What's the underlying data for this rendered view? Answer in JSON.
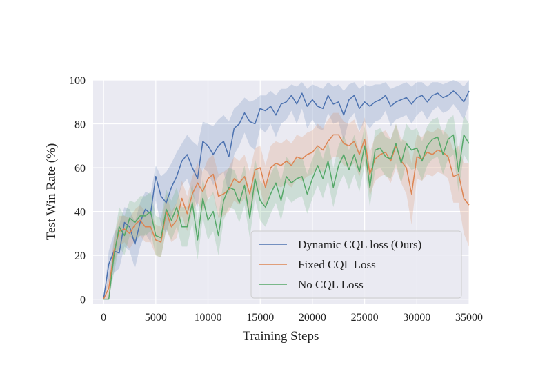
{
  "chart_data": {
    "type": "line",
    "xlabel": "Training Steps",
    "ylabel": "Test Win Rate (%)",
    "xlim": [
      -1000,
      35000
    ],
    "ylim": [
      -2,
      100
    ],
    "xticks": [
      0,
      5000,
      10000,
      15000,
      20000,
      25000,
      30000,
      35000
    ],
    "yticks": [
      0,
      20,
      40,
      60,
      80,
      100
    ],
    "grid": true,
    "legend_position": "lower-right",
    "series": [
      {
        "name": "Dynamic CQL loss (Ours)",
        "color": "#4c72b0",
        "x": [
          0,
          500,
          1000,
          1500,
          2000,
          2500,
          3000,
          3500,
          4000,
          4500,
          5000,
          5500,
          6000,
          6500,
          7000,
          7500,
          8000,
          8500,
          9000,
          9500,
          10000,
          10500,
          11000,
          11500,
          12000,
          12500,
          13000,
          13500,
          14000,
          14500,
          15000,
          15500,
          16000,
          16500,
          17000,
          17500,
          18000,
          18500,
          19000,
          19500,
          20000,
          20500,
          21000,
          21500,
          22000,
          22500,
          23000,
          23500,
          24000,
          24500,
          25000,
          25500,
          26000,
          26500,
          27000,
          27500,
          28000,
          28500,
          29000,
          29500,
          30000,
          30500,
          31000,
          31500,
          32000,
          32500,
          33000,
          33500,
          34000,
          34500,
          35000
        ],
        "y": [
          0,
          16,
          22,
          21,
          35,
          33,
          25,
          35,
          41,
          39,
          56,
          47,
          44,
          51,
          56,
          63,
          66,
          60,
          55,
          72,
          70,
          66,
          70,
          72,
          65,
          78,
          80,
          85,
          81,
          80,
          87,
          86,
          88,
          84,
          89,
          90,
          93,
          89,
          94,
          88,
          91,
          88,
          87,
          93,
          89,
          90,
          84,
          91,
          93,
          87,
          90,
          88,
          90,
          91,
          93,
          88,
          90,
          91,
          92,
          89,
          92,
          93,
          90,
          93,
          94,
          92,
          93,
          95,
          93,
          90,
          95
        ],
        "upper": [
          0,
          22,
          30,
          34,
          42,
          41,
          35,
          44,
          49,
          48,
          61,
          56,
          58,
          62,
          67,
          71,
          75,
          72,
          70,
          81,
          80,
          79,
          82,
          84,
          81,
          87,
          89,
          92,
          90,
          91,
          93,
          93,
          95,
          93,
          96,
          96,
          98,
          97,
          99,
          96,
          98,
          97,
          96,
          99,
          97,
          98,
          95,
          98,
          99,
          96,
          98,
          97,
          98,
          98,
          99,
          96,
          97,
          98,
          99,
          97,
          99,
          99,
          97,
          99,
          99,
          98,
          99,
          100,
          99,
          97,
          100
        ],
        "lower": [
          0,
          8,
          12,
          14,
          24,
          22,
          14,
          24,
          30,
          26,
          45,
          34,
          30,
          38,
          44,
          52,
          55,
          48,
          42,
          60,
          58,
          52,
          56,
          58,
          48,
          66,
          70,
          76,
          70,
          68,
          78,
          76,
          80,
          74,
          80,
          82,
          86,
          80,
          87,
          78,
          82,
          78,
          77,
          85,
          80,
          81,
          72,
          82,
          85,
          77,
          81,
          78,
          81,
          82,
          86,
          79,
          82,
          83,
          84,
          80,
          84,
          86,
          82,
          86,
          88,
          85,
          86,
          89,
          86,
          82,
          89
        ]
      },
      {
        "name": "Fixed CQL Loss",
        "color": "#dd8452",
        "x": [
          0,
          500,
          1000,
          1500,
          2000,
          2500,
          3000,
          3500,
          4000,
          4500,
          5000,
          5500,
          6000,
          6500,
          7000,
          7500,
          8000,
          8500,
          9000,
          9500,
          10000,
          10500,
          11000,
          11500,
          12000,
          12500,
          13000,
          13500,
          14000,
          14500,
          15000,
          15500,
          16000,
          16500,
          17000,
          17500,
          18000,
          18500,
          19000,
          19500,
          20000,
          20500,
          21000,
          21500,
          22000,
          22500,
          23000,
          23500,
          24000,
          24500,
          25000,
          25500,
          26000,
          26500,
          27000,
          27500,
          28000,
          28500,
          29000,
          29500,
          30000,
          30500,
          31000,
          31500,
          32000,
          32500,
          33000,
          33500,
          34000,
          34500,
          35000
        ],
        "y": [
          0,
          5,
          22,
          31,
          32,
          30,
          34,
          36,
          33,
          33,
          27,
          26,
          40,
          33,
          36,
          46,
          39,
          48,
          53,
          49,
          55,
          57,
          47,
          48,
          50,
          55,
          53,
          56,
          48,
          59,
          60,
          51,
          60,
          62,
          61,
          63,
          61,
          65,
          64,
          66,
          67,
          70,
          68,
          72,
          75,
          75,
          71,
          70,
          72,
          66,
          73,
          57,
          64,
          66,
          67,
          63,
          70,
          63,
          60,
          48,
          65,
          64,
          67,
          66,
          68,
          67,
          65,
          56,
          57,
          46,
          43
        ],
        "upper": [
          0,
          10,
          28,
          38,
          38,
          37,
          41,
          43,
          40,
          40,
          34,
          33,
          48,
          40,
          44,
          54,
          47,
          56,
          62,
          58,
          64,
          66,
          57,
          58,
          60,
          65,
          63,
          66,
          58,
          69,
          70,
          61,
          70,
          72,
          71,
          73,
          71,
          75,
          74,
          76,
          77,
          80,
          78,
          82,
          85,
          85,
          81,
          80,
          82,
          76,
          83,
          67,
          74,
          76,
          77,
          73,
          80,
          73,
          72,
          62,
          75,
          74,
          77,
          76,
          78,
          77,
          75,
          68,
          70,
          62,
          62
        ],
        "lower": [
          0,
          0,
          16,
          24,
          26,
          23,
          27,
          29,
          26,
          26,
          20,
          19,
          32,
          26,
          28,
          38,
          31,
          40,
          44,
          40,
          46,
          48,
          37,
          38,
          40,
          45,
          43,
          46,
          38,
          49,
          50,
          41,
          50,
          52,
          51,
          53,
          51,
          55,
          54,
          56,
          57,
          60,
          58,
          62,
          65,
          65,
          61,
          60,
          62,
          56,
          63,
          47,
          54,
          56,
          57,
          53,
          60,
          53,
          48,
          34,
          55,
          54,
          57,
          56,
          58,
          57,
          55,
          44,
          44,
          30,
          24
        ]
      },
      {
        "name": "No CQL Loss",
        "color": "#55a868",
        "x": [
          0,
          500,
          1000,
          1500,
          2000,
          2500,
          3000,
          3500,
          4000,
          4500,
          5000,
          5500,
          6000,
          6500,
          7000,
          7500,
          8000,
          8500,
          9000,
          9500,
          10000,
          10500,
          11000,
          11500,
          12000,
          12500,
          13000,
          13500,
          14000,
          14500,
          15000,
          15500,
          16000,
          16500,
          17000,
          17500,
          18000,
          18500,
          19000,
          19500,
          20000,
          20500,
          21000,
          21500,
          22000,
          22500,
          23000,
          23500,
          24000,
          24500,
          25000,
          25500,
          26000,
          26500,
          27000,
          27500,
          28000,
          28500,
          29000,
          29500,
          30000,
          30500,
          31000,
          31500,
          32000,
          32500,
          33000,
          33500,
          34000,
          34500,
          35000
        ],
        "y": [
          0,
          0,
          20,
          33,
          29,
          37,
          35,
          38,
          38,
          40,
          29,
          28,
          41,
          36,
          42,
          33,
          33,
          44,
          27,
          46,
          36,
          40,
          29,
          45,
          51,
          50,
          44,
          52,
          37,
          55,
          45,
          42,
          48,
          53,
          45,
          56,
          53,
          55,
          56,
          48,
          55,
          61,
          55,
          63,
          51,
          61,
          66,
          59,
          66,
          58,
          70,
          51,
          68,
          69,
          65,
          64,
          71,
          62,
          71,
          68,
          69,
          63,
          70,
          73,
          74,
          66,
          73,
          75,
          58,
          75,
          71
        ],
        "upper": [
          0,
          0,
          28,
          42,
          38,
          45,
          44,
          47,
          47,
          49,
          38,
          37,
          50,
          45,
          51,
          42,
          42,
          53,
          36,
          55,
          45,
          49,
          38,
          54,
          60,
          59,
          53,
          61,
          46,
          64,
          54,
          51,
          57,
          62,
          54,
          65,
          62,
          64,
          65,
          57,
          64,
          70,
          64,
          72,
          60,
          70,
          75,
          68,
          75,
          67,
          79,
          60,
          77,
          78,
          74,
          73,
          80,
          71,
          80,
          77,
          78,
          72,
          79,
          82,
          83,
          75,
          82,
          84,
          67,
          84,
          80
        ],
        "lower": [
          0,
          0,
          12,
          24,
          20,
          29,
          26,
          29,
          29,
          31,
          20,
          19,
          32,
          27,
          33,
          24,
          24,
          35,
          18,
          37,
          27,
          31,
          20,
          36,
          42,
          41,
          35,
          43,
          28,
          46,
          36,
          33,
          39,
          44,
          36,
          47,
          44,
          46,
          47,
          39,
          46,
          52,
          46,
          54,
          42,
          52,
          57,
          50,
          57,
          49,
          61,
          42,
          59,
          60,
          56,
          55,
          62,
          53,
          62,
          59,
          60,
          54,
          61,
          64,
          65,
          57,
          64,
          66,
          49,
          66,
          62
        ]
      }
    ]
  }
}
